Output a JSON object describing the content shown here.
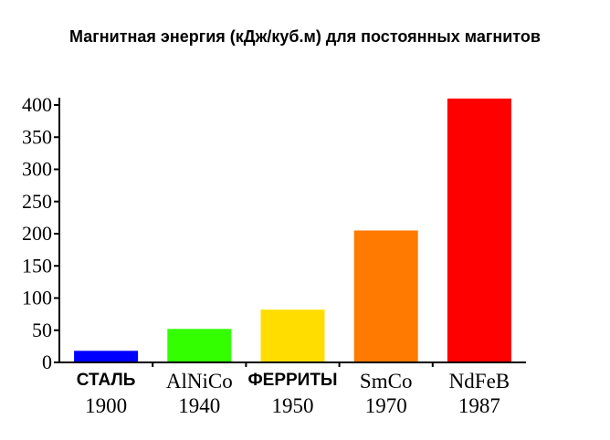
{
  "chart_data": {
    "type": "bar",
    "title": "Магнитная энергия (кДж/куб.м) для постоянных магнитов",
    "categories": [
      "СТАЛЬ",
      "AlNiCo",
      "ФЕРРИТЫ",
      "SmCo",
      "NdFeB"
    ],
    "years": [
      "1900",
      "1940",
      "1950",
      "1970",
      "1987"
    ],
    "values": [
      18,
      52,
      82,
      205,
      410
    ],
    "colors": [
      "#0000ff",
      "#33ff00",
      "#ffdd00",
      "#ff7a00",
      "#ff0000"
    ],
    "ylim": [
      0,
      400
    ],
    "yticks": [
      0,
      50,
      100,
      150,
      200,
      250,
      300,
      350,
      400
    ],
    "xlabel": "",
    "ylabel": "",
    "grid": false
  }
}
